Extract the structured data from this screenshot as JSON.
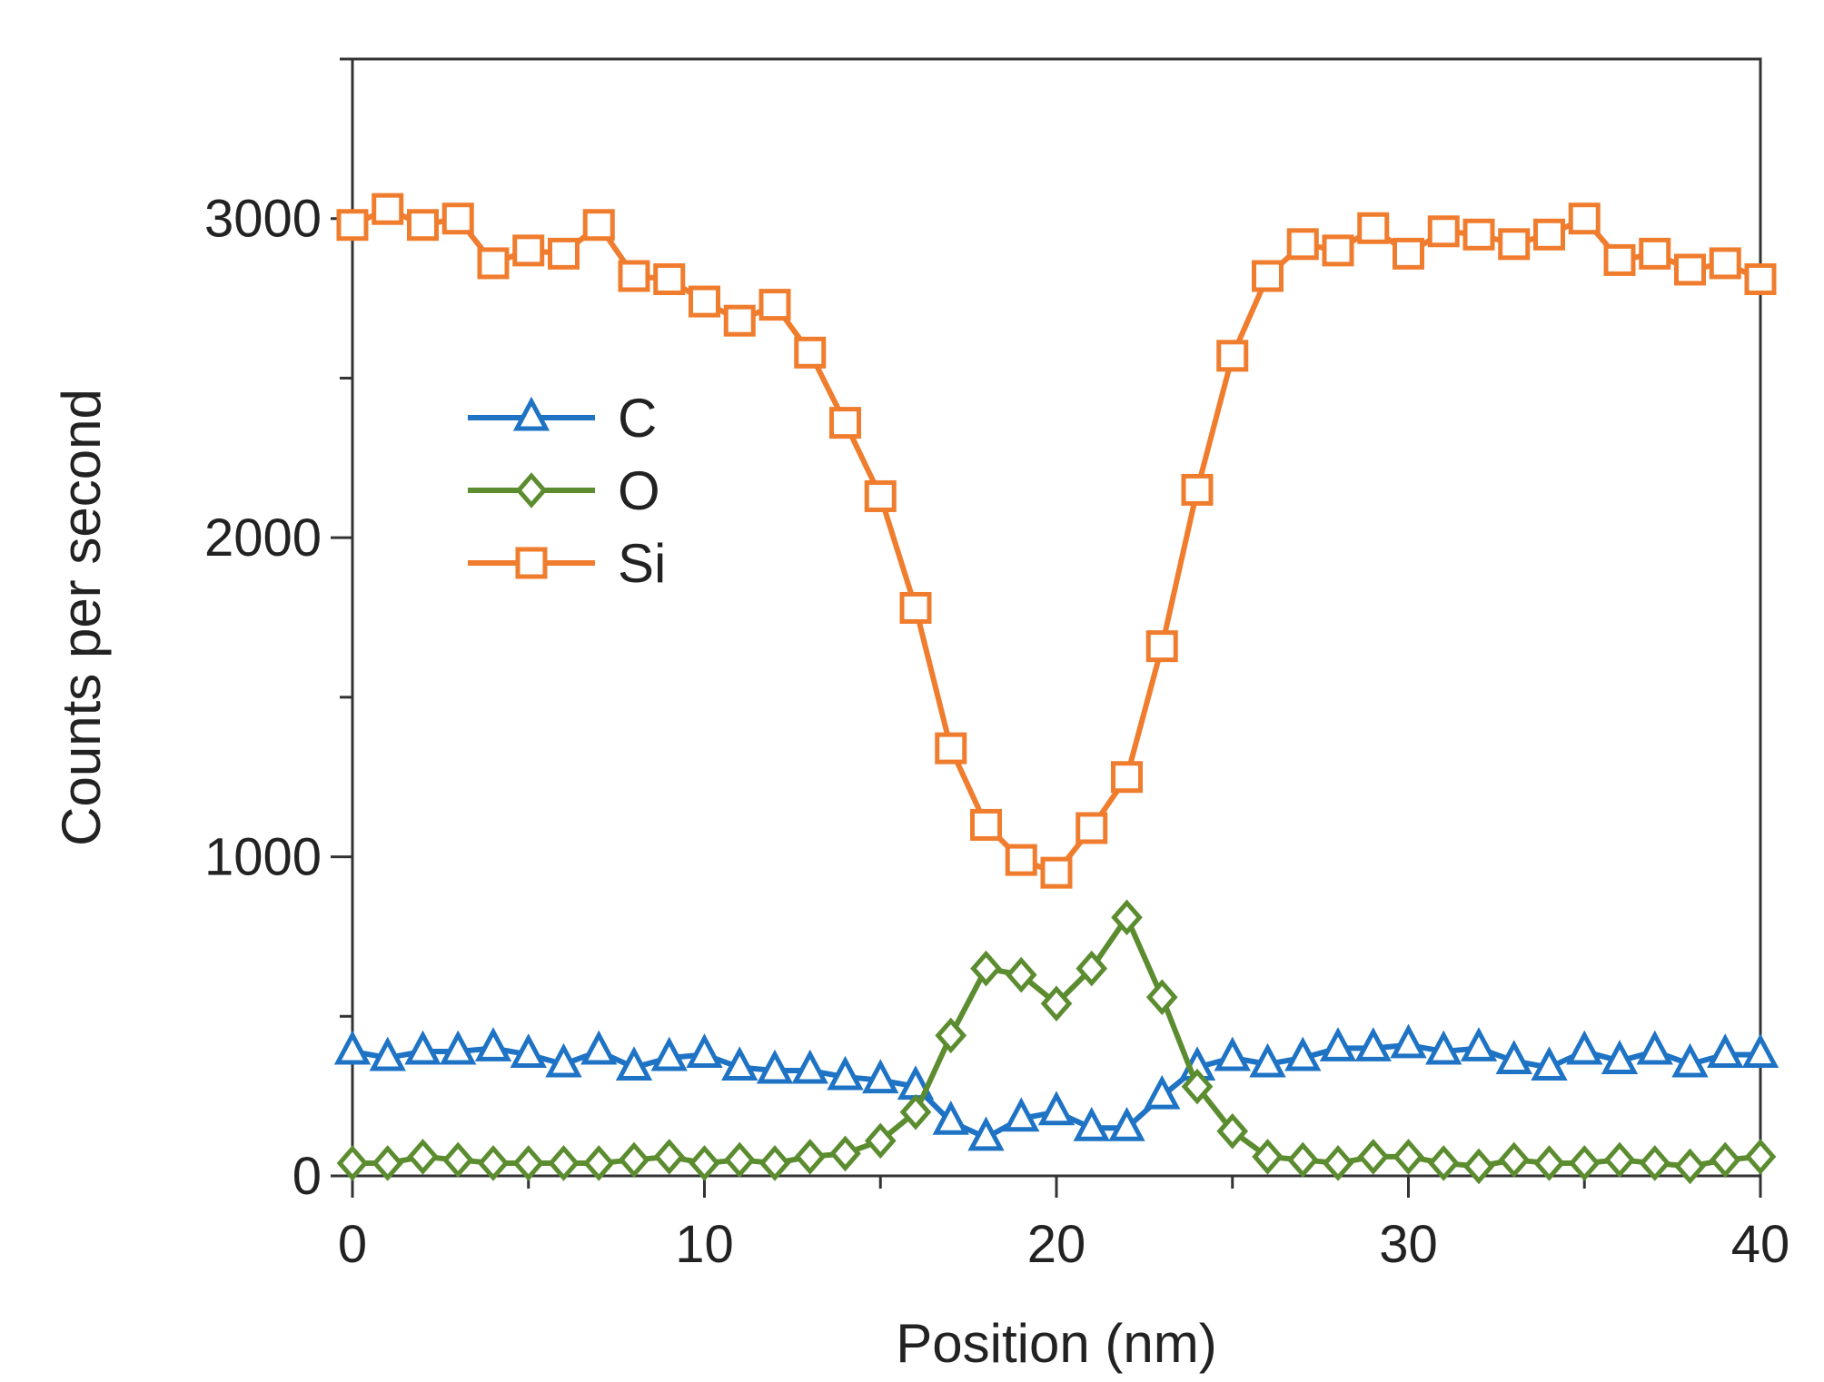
{
  "chart_data": {
    "type": "line",
    "title": "",
    "xlabel": "Position (nm)",
    "ylabel": "Counts per second",
    "xlim": [
      0,
      40
    ],
    "ylim": [
      0,
      3500
    ],
    "xticks": [
      0,
      10,
      20,
      30,
      40
    ],
    "xtick_labels": [
      "0",
      "10",
      "20",
      "30",
      "40"
    ],
    "yticks": [
      0,
      1000,
      2000,
      3000
    ],
    "ytick_labels": [
      "0",
      "1000",
      "2000",
      "3000"
    ],
    "legend_position": "upper-left",
    "x": [
      0,
      1,
      2,
      3,
      4,
      5,
      6,
      7,
      8,
      9,
      10,
      11,
      12,
      13,
      14,
      15,
      16,
      17,
      18,
      19,
      20,
      21,
      22,
      23,
      24,
      25,
      26,
      27,
      28,
      29,
      30,
      31,
      32,
      33,
      34,
      35,
      36,
      37,
      38,
      39,
      40
    ],
    "series": [
      {
        "name": "C",
        "color": "#1f73c4",
        "marker": "triangle",
        "values": [
          390,
          370,
          390,
          390,
          400,
          380,
          350,
          390,
          340,
          370,
          380,
          340,
          330,
          330,
          310,
          300,
          280,
          170,
          120,
          180,
          200,
          150,
          150,
          250,
          340,
          370,
          350,
          370,
          400,
          400,
          410,
          390,
          400,
          360,
          340,
          390,
          360,
          390,
          350,
          380,
          380
        ]
      },
      {
        "name": "O",
        "color": "#5c8c30",
        "marker": "diamond",
        "values": [
          40,
          40,
          60,
          50,
          40,
          40,
          40,
          40,
          50,
          60,
          40,
          50,
          40,
          60,
          70,
          110,
          200,
          440,
          650,
          630,
          540,
          650,
          810,
          560,
          280,
          140,
          60,
          50,
          40,
          60,
          60,
          40,
          30,
          50,
          40,
          40,
          50,
          40,
          30,
          50,
          60
        ]
      },
      {
        "name": "Si",
        "color": "#f07c2e",
        "marker": "square",
        "values": [
          2980,
          3030,
          2980,
          3000,
          2860,
          2900,
          2890,
          2980,
          2820,
          2810,
          2740,
          2680,
          2730,
          2580,
          2360,
          2130,
          1780,
          1340,
          1100,
          990,
          950,
          1090,
          1250,
          1660,
          2150,
          2570,
          2820,
          2920,
          2900,
          2970,
          2890,
          2960,
          2950,
          2920,
          2950,
          3000,
          2870,
          2890,
          2840,
          2860,
          2810
        ]
      }
    ]
  }
}
